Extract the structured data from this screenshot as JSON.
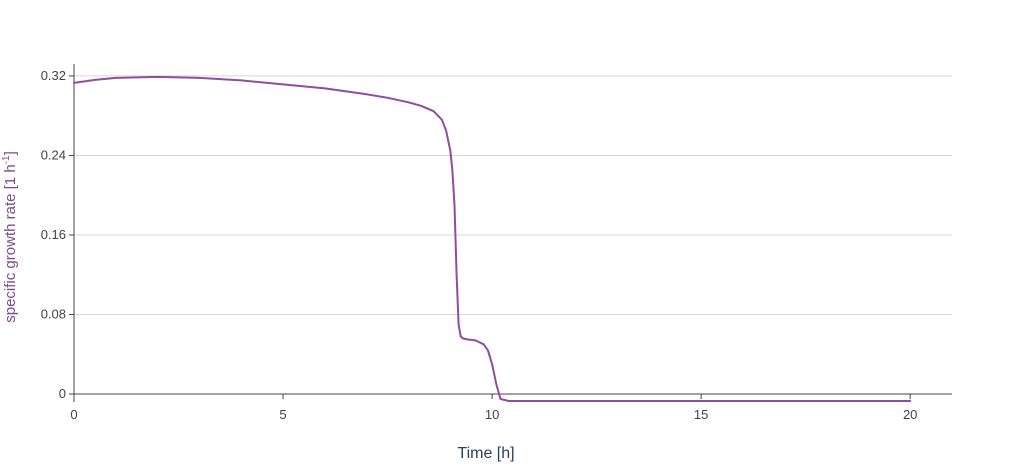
{
  "chart_data": {
    "type": "line",
    "title": "",
    "xlabel": "Time [h]",
    "ylabel_main": "specific growth rate [1 h",
    "ylabel_sup": "-1",
    "ylabel_end": "]",
    "xlim": [
      0,
      21
    ],
    "ylim": [
      -0.008,
      0.332
    ],
    "x_ticks": [
      0,
      5,
      10,
      15,
      20
    ],
    "x_tick_labels": [
      "0",
      "5",
      "10",
      "15",
      "20"
    ],
    "y_ticks": [
      0,
      0.08,
      0.16,
      0.24,
      0.32
    ],
    "y_tick_labels": [
      "0",
      "0.08",
      "0.16",
      "0.24",
      "0.32"
    ],
    "grid": true,
    "legend": "none",
    "colors": {
      "series": "#8e4d9e",
      "grid": "#d8d8d8",
      "axis": "#444444",
      "ylabel": "#7f4a93"
    },
    "series": [
      {
        "x": [
          0,
          0.5,
          1,
          1.5,
          2,
          3,
          4,
          5,
          6,
          7,
          7.5,
          8,
          8.3,
          8.6,
          8.8,
          8.9,
          9.0,
          9.05,
          9.1,
          9.15,
          9.2,
          9.25,
          9.3,
          9.4,
          9.6,
          9.8,
          9.9,
          10.0,
          10.1,
          10.2,
          10.4,
          11,
          12,
          13,
          14,
          15,
          16,
          17,
          18,
          19,
          20
        ],
        "y": [
          0.313,
          0.316,
          0.318,
          0.3185,
          0.319,
          0.318,
          0.3155,
          0.3115,
          0.3075,
          0.3015,
          0.298,
          0.2935,
          0.29,
          0.2845,
          0.276,
          0.265,
          0.245,
          0.225,
          0.19,
          0.12,
          0.07,
          0.058,
          0.056,
          0.055,
          0.054,
          0.05,
          0.044,
          0.03,
          0.01,
          -0.005,
          -0.007,
          -0.007,
          -0.007,
          -0.007,
          -0.007,
          -0.007,
          -0.007,
          -0.007,
          -0.007,
          -0.007,
          -0.007
        ]
      }
    ]
  }
}
